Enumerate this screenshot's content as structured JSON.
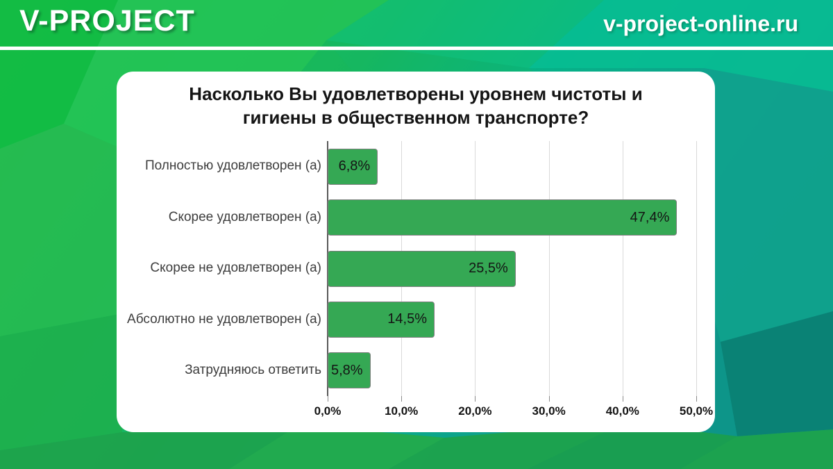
{
  "header": {
    "brand": "V-PROJECT",
    "site": "v-project-online.ru"
  },
  "palette": {
    "background_left_green": "#1fc04f",
    "background_right_teal": "#0f9f8c",
    "background_dark_teal": "#0b8174",
    "background_bottom_green": "#1ea24c",
    "divider_white": "#ffffff"
  },
  "chart_data": {
    "type": "bar",
    "orientation": "horizontal",
    "title": "Насколько Вы удовлетворены уровнем чистоты и гигиены в общественном транспорте?",
    "categories": [
      "Полностью удовлетворен (а)",
      "Скорее удовлетворен (а)",
      "Скорее не удовлетворен (а)",
      "Абсолютно не удовлетворен (а)",
      "Затрудняюсь ответить"
    ],
    "values": [
      6.8,
      47.4,
      25.5,
      14.5,
      5.8
    ],
    "value_labels": [
      "6,8%",
      "47,4%",
      "25,5%",
      "14,5%",
      "5,8%"
    ],
    "x_ticks": [
      "0,0%",
      "10,0%",
      "20,0%",
      "30,0%",
      "40,0%",
      "50,0%"
    ],
    "xlim": [
      0,
      50
    ],
    "grid": true,
    "legend": false,
    "bar_color": "#35a854",
    "bar_border_color": "#7f7f7f",
    "gridline_color": "#d9d9d9",
    "axis_line_color": "#595959"
  }
}
